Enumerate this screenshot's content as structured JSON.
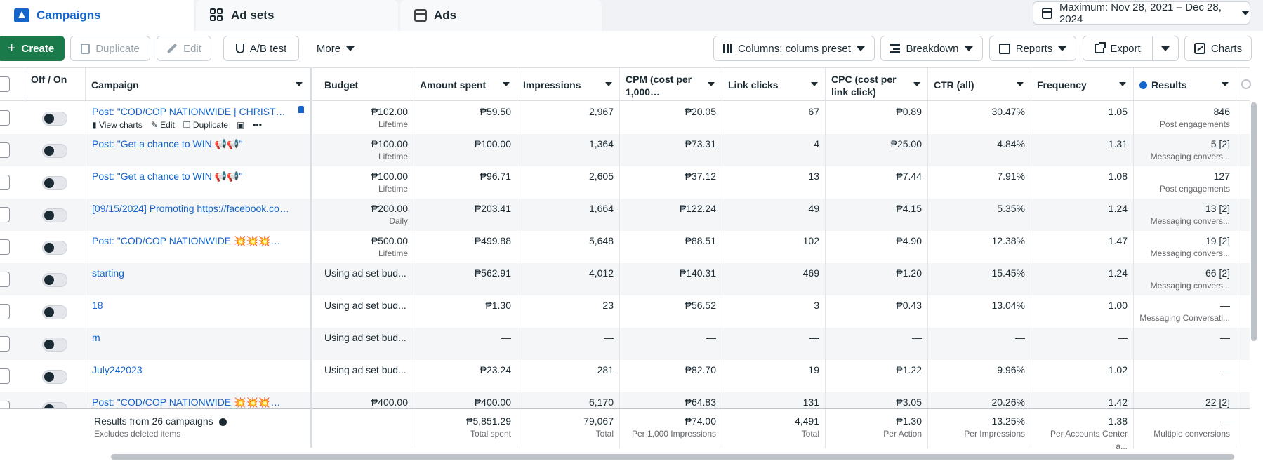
{
  "tabs": {
    "campaigns": "Campaigns",
    "adsets": "Ad sets",
    "ads": "Ads"
  },
  "date_range": "Maximum: Nov 28, 2021 – Dec 28, 2024",
  "toolbar": {
    "create": "Create",
    "duplicate": "Duplicate",
    "edit": "Edit",
    "ab_test": "A/B test",
    "more": "More",
    "columns": "Columns: colums preset",
    "breakdown": "Breakdown",
    "reports": "Reports",
    "export": "Export",
    "charts": "Charts"
  },
  "headers": {
    "offon": "Off / On",
    "campaign": "Campaign",
    "budget": "Budget",
    "amount": "Amount spent",
    "impressions": "Impressions",
    "cpm": "CPM (cost per 1,000…",
    "clicks": "Link clicks",
    "cpc": "CPC (cost per link click)",
    "ctr": "CTR (all)",
    "frequency": "Frequency",
    "results": "Results"
  },
  "row_actions": {
    "view_charts": "View charts",
    "edit": "Edit",
    "duplicate": "Duplicate",
    "more": "•••"
  },
  "rows": [
    {
      "name": "Post: \"COD/COP NATIONWIDE | CHRISTM...",
      "budget": "₱102.00",
      "budget_type": "Lifetime",
      "amount": "₱59.50",
      "impressions": "2,967",
      "cpm": "₱20.05",
      "clicks": "67",
      "cpc": "₱0.89",
      "ctr": "30.47%",
      "frequency": "1.05",
      "results": "846",
      "results_type": "Post engagements"
    },
    {
      "name": "Post: \"Get a chance to WIN 📢📢\"",
      "budget": "₱100.00",
      "budget_type": "Lifetime",
      "amount": "₱100.00",
      "impressions": "1,364",
      "cpm": "₱73.31",
      "clicks": "4",
      "cpc": "₱25.00",
      "ctr": "4.84%",
      "frequency": "1.31",
      "results": "5 [2]",
      "results_type": "Messaging convers..."
    },
    {
      "name": "Post: \"Get a chance to WIN 📢📢\"",
      "budget": "₱100.00",
      "budget_type": "Lifetime",
      "amount": "₱96.71",
      "impressions": "2,605",
      "cpm": "₱37.12",
      "clicks": "13",
      "cpc": "₱7.44",
      "ctr": "7.91%",
      "frequency": "1.08",
      "results": "127",
      "results_type": "Post engagements"
    },
    {
      "name": "[09/15/2024] Promoting https://facebook.com/...",
      "budget": "₱200.00",
      "budget_type": "Daily",
      "amount": "₱203.41",
      "impressions": "1,664",
      "cpm": "₱122.24",
      "clicks": "49",
      "cpc": "₱4.15",
      "ctr": "5.35%",
      "frequency": "1.24",
      "results": "13 [2]",
      "results_type": "Messaging convers..."
    },
    {
      "name": "Post: \"COD/COP NATIONWIDE 💥💥💥💥💥\"",
      "budget": "₱500.00",
      "budget_type": "Lifetime",
      "amount": "₱499.88",
      "impressions": "5,648",
      "cpm": "₱88.51",
      "clicks": "102",
      "cpc": "₱4.90",
      "ctr": "12.38%",
      "frequency": "1.47",
      "results": "19 [2]",
      "results_type": "Messaging convers..."
    },
    {
      "name": "starting",
      "budget": "Using ad set bud...",
      "budget_type": "",
      "amount": "₱562.91",
      "impressions": "4,012",
      "cpm": "₱140.31",
      "clicks": "469",
      "cpc": "₱1.20",
      "ctr": "15.45%",
      "frequency": "1.24",
      "results": "66 [2]",
      "results_type": "Messaging convers..."
    },
    {
      "name": "18",
      "budget": "Using ad set bud...",
      "budget_type": "",
      "amount": "₱1.30",
      "impressions": "23",
      "cpm": "₱56.52",
      "clicks": "3",
      "cpc": "₱0.43",
      "ctr": "13.04%",
      "frequency": "1.00",
      "results": "—",
      "results_type": "Messaging Conversati..."
    },
    {
      "name": "m",
      "budget": "Using ad set bud...",
      "budget_type": "",
      "amount": "—",
      "impressions": "—",
      "cpm": "—",
      "clicks": "—",
      "cpc": "—",
      "ctr": "—",
      "frequency": "—",
      "results": "—",
      "results_type": ""
    },
    {
      "name": "July242023",
      "budget": "Using ad set bud...",
      "budget_type": "",
      "amount": "₱23.24",
      "impressions": "281",
      "cpm": "₱82.70",
      "clicks": "19",
      "cpc": "₱1.22",
      "ctr": "9.96%",
      "frequency": "1.02",
      "results": "—",
      "results_type": ""
    },
    {
      "name": "Post: \"COD/COP NATIONWIDE 💥💥💥💥💥\"",
      "budget": "₱400.00",
      "budget_type": "",
      "amount": "₱400.00",
      "impressions": "6,170",
      "cpm": "₱64.83",
      "clicks": "131",
      "cpc": "₱3.05",
      "ctr": "20.26%",
      "frequency": "1.42",
      "results": "22 [2]",
      "results_type": ""
    }
  ],
  "footer": {
    "summary": "Results from 26 campaigns",
    "summary_note": "Excludes deleted items",
    "amount": "₱5,851.29",
    "amount_note": "Total spent",
    "impressions": "79,067",
    "impressions_note": "Total",
    "cpm": "₱74.00",
    "cpm_note": "Per 1,000 Impressions",
    "clicks": "4,491",
    "clicks_note": "Total",
    "cpc": "₱1.30",
    "cpc_note": "Per Action",
    "ctr": "13.25%",
    "ctr_note": "Per Impressions",
    "frequency": "1.38",
    "frequency_note": "Per Accounts Center a...",
    "results": "—",
    "results_note": "Multiple conversions"
  },
  "colors": {
    "accent": "#1464cc",
    "create": "#1b7a4a"
  }
}
